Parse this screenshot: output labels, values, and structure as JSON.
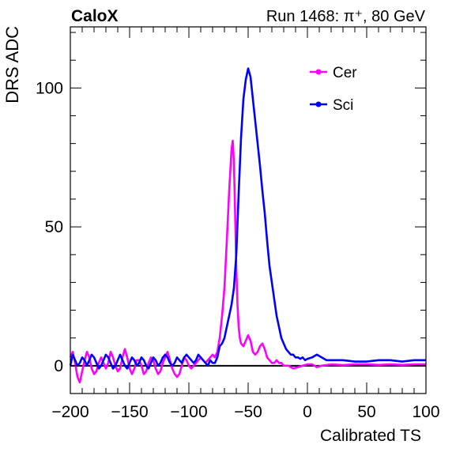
{
  "header": {
    "experiment": "CaloX",
    "run_info": "Run 1468:   π⁺, 80 GeV"
  },
  "chart_data": {
    "type": "line",
    "title": "",
    "xlabel": "Calibrated TS",
    "ylabel": "DRS ADC",
    "xlim": [
      -200,
      100
    ],
    "ylim": [
      -10,
      122
    ],
    "xticks": [
      -200,
      -150,
      -100,
      -50,
      0,
      50,
      100
    ],
    "xtick_labels": [
      "−200",
      "−150",
      "−100",
      "−50",
      "0",
      "50",
      "100"
    ],
    "yticks": [
      0,
      50,
      100
    ],
    "ytick_labels": [
      "0",
      "50",
      "100"
    ],
    "grid": false,
    "legend_position": "top-right",
    "zero_line": true,
    "series": [
      {
        "name": "Cer",
        "color": "#ff00ff",
        "marker": "circle",
        "points": [
          [
            -200,
            3
          ],
          [
            -198,
            5
          ],
          [
            -196,
            1
          ],
          [
            -194,
            -4
          ],
          [
            -192,
            -6
          ],
          [
            -190,
            -2
          ],
          [
            -188,
            2
          ],
          [
            -186,
            5
          ],
          [
            -184,
            3
          ],
          [
            -182,
            -1
          ],
          [
            -180,
            -3
          ],
          [
            -178,
            -2
          ],
          [
            -176,
            1
          ],
          [
            -174,
            3
          ],
          [
            -172,
            1
          ],
          [
            -170,
            -1
          ],
          [
            -168,
            1
          ],
          [
            -166,
            5
          ],
          [
            -164,
            3
          ],
          [
            -162,
            0
          ],
          [
            -160,
            -2
          ],
          [
            -158,
            -1
          ],
          [
            -156,
            3
          ],
          [
            -154,
            6
          ],
          [
            -152,
            3
          ],
          [
            -150,
            -1
          ],
          [
            -148,
            -3
          ],
          [
            -146,
            -1
          ],
          [
            -144,
            2
          ],
          [
            -142,
            2
          ],
          [
            -140,
            0
          ],
          [
            -138,
            -3
          ],
          [
            -136,
            -2
          ],
          [
            -134,
            1
          ],
          [
            -132,
            3
          ],
          [
            -130,
            2
          ],
          [
            -128,
            -1
          ],
          [
            -126,
            -3
          ],
          [
            -124,
            -2
          ],
          [
            -122,
            1
          ],
          [
            -120,
            3
          ],
          [
            -118,
            5
          ],
          [
            -116,
            2
          ],
          [
            -114,
            -1
          ],
          [
            -112,
            -3
          ],
          [
            -110,
            -4
          ],
          [
            -108,
            -3
          ],
          [
            -106,
            0
          ],
          [
            -104,
            3
          ],
          [
            -102,
            2
          ],
          [
            -100,
            0
          ],
          [
            -98,
            -1
          ],
          [
            -96,
            0
          ],
          [
            -94,
            1
          ],
          [
            -92,
            2
          ],
          [
            -90,
            3
          ],
          [
            -88,
            2
          ],
          [
            -86,
            1
          ],
          [
            -84,
            2
          ],
          [
            -82,
            3
          ],
          [
            -80,
            4
          ],
          [
            -78,
            3
          ],
          [
            -76,
            5
          ],
          [
            -74,
            10
          ],
          [
            -72,
            18
          ],
          [
            -70,
            28
          ],
          [
            -68,
            45
          ],
          [
            -66,
            63
          ],
          [
            -64,
            78
          ],
          [
            -63,
            81
          ],
          [
            -62,
            73
          ],
          [
            -61,
            55
          ],
          [
            -60,
            35
          ],
          [
            -59,
            22
          ],
          [
            -58,
            14
          ],
          [
            -57,
            10
          ],
          [
            -56,
            8
          ],
          [
            -54,
            7
          ],
          [
            -52,
            9
          ],
          [
            -50,
            11
          ],
          [
            -48,
            9
          ],
          [
            -46,
            5
          ],
          [
            -44,
            4
          ],
          [
            -42,
            5
          ],
          [
            -40,
            7
          ],
          [
            -38,
            8
          ],
          [
            -36,
            6
          ],
          [
            -34,
            3
          ],
          [
            -32,
            2
          ],
          [
            -30,
            1
          ],
          [
            -28,
            1
          ],
          [
            -26,
            2
          ],
          [
            -24,
            1
          ],
          [
            -22,
            1
          ],
          [
            -20,
            0
          ],
          [
            -16,
            0
          ],
          [
            -12,
            -1
          ],
          [
            -8,
            -0.5
          ],
          [
            -4,
            0
          ],
          [
            0,
            0.5
          ],
          [
            4,
            0.5
          ],
          [
            8,
            -0.5
          ],
          [
            12,
            0
          ],
          [
            20,
            0.5
          ],
          [
            30,
            0.2
          ],
          [
            40,
            0.5
          ],
          [
            50,
            0.5
          ],
          [
            60,
            0.3
          ],
          [
            70,
            0.5
          ],
          [
            80,
            0.3
          ],
          [
            90,
            0.5
          ],
          [
            100,
            0.5
          ]
        ]
      },
      {
        "name": "Sci",
        "color": "#0000ff",
        "marker": "circle",
        "points": [
          [
            -200,
            0
          ],
          [
            -198,
            4
          ],
          [
            -196,
            2
          ],
          [
            -194,
            0
          ],
          [
            -192,
            1
          ],
          [
            -190,
            3
          ],
          [
            -188,
            2
          ],
          [
            -186,
            0
          ],
          [
            -184,
            2
          ],
          [
            -182,
            4
          ],
          [
            -180,
            3
          ],
          [
            -178,
            1
          ],
          [
            -176,
            -1
          ],
          [
            -174,
            0
          ],
          [
            -172,
            2
          ],
          [
            -170,
            4
          ],
          [
            -168,
            3
          ],
          [
            -166,
            1
          ],
          [
            -164,
            -1
          ],
          [
            -162,
            0
          ],
          [
            -160,
            2
          ],
          [
            -158,
            4
          ],
          [
            -156,
            2
          ],
          [
            -154,
            0
          ],
          [
            -152,
            -1
          ],
          [
            -150,
            1
          ],
          [
            -148,
            3
          ],
          [
            -146,
            2
          ],
          [
            -144,
            0
          ],
          [
            -142,
            1
          ],
          [
            -140,
            3
          ],
          [
            -138,
            2
          ],
          [
            -136,
            0
          ],
          [
            -134,
            -1
          ],
          [
            -132,
            1
          ],
          [
            -130,
            3
          ],
          [
            -128,
            2
          ],
          [
            -126,
            0
          ],
          [
            -124,
            1
          ],
          [
            -122,
            3
          ],
          [
            -120,
            4
          ],
          [
            -118,
            3
          ],
          [
            -116,
            1
          ],
          [
            -114,
            0
          ],
          [
            -112,
            1
          ],
          [
            -110,
            3
          ],
          [
            -108,
            2
          ],
          [
            -106,
            1
          ],
          [
            -104,
            3
          ],
          [
            -102,
            4
          ],
          [
            -100,
            3
          ],
          [
            -98,
            2
          ],
          [
            -96,
            1
          ],
          [
            -94,
            2
          ],
          [
            -92,
            4
          ],
          [
            -90,
            3
          ],
          [
            -88,
            2
          ],
          [
            -86,
            1
          ],
          [
            -84,
            0
          ],
          [
            -82,
            2
          ],
          [
            -80,
            1
          ],
          [
            -78,
            1
          ],
          [
            -76,
            3
          ],
          [
            -74,
            7
          ],
          [
            -72,
            8
          ],
          [
            -70,
            10
          ],
          [
            -68,
            14
          ],
          [
            -66,
            18
          ],
          [
            -64,
            22
          ],
          [
            -62,
            28
          ],
          [
            -60,
            40
          ],
          [
            -58,
            62
          ],
          [
            -56,
            82
          ],
          [
            -54,
            96
          ],
          [
            -52,
            103
          ],
          [
            -50,
            107
          ],
          [
            -48,
            104
          ],
          [
            -46,
            96
          ],
          [
            -44,
            88
          ],
          [
            -42,
            80
          ],
          [
            -40,
            72
          ],
          [
            -38,
            63
          ],
          [
            -36,
            55
          ],
          [
            -34,
            45
          ],
          [
            -32,
            36
          ],
          [
            -30,
            30
          ],
          [
            -28,
            24
          ],
          [
            -26,
            18
          ],
          [
            -24,
            14
          ],
          [
            -22,
            10
          ],
          [
            -20,
            8
          ],
          [
            -18,
            6
          ],
          [
            -16,
            5
          ],
          [
            -14,
            4
          ],
          [
            -12,
            4
          ],
          [
            -10,
            3
          ],
          [
            -8,
            3
          ],
          [
            -6,
            2.5
          ],
          [
            -4,
            3
          ],
          [
            -2,
            2
          ],
          [
            0,
            2.5
          ],
          [
            4,
            3
          ],
          [
            8,
            4
          ],
          [
            12,
            3
          ],
          [
            16,
            2
          ],
          [
            20,
            2
          ],
          [
            30,
            2
          ],
          [
            40,
            1.5
          ],
          [
            50,
            1.5
          ],
          [
            60,
            2
          ],
          [
            70,
            2
          ],
          [
            80,
            1.5
          ],
          [
            90,
            2
          ],
          [
            100,
            2
          ]
        ]
      }
    ]
  }
}
